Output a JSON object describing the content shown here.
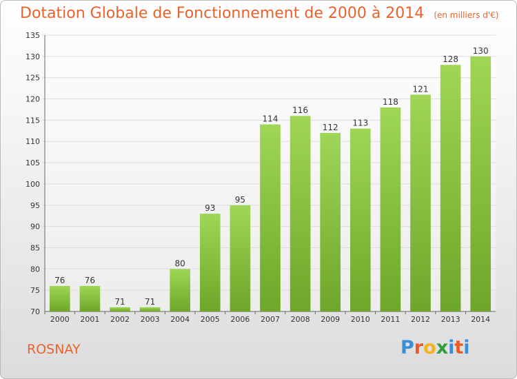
{
  "header": {
    "title": "Dotation Globale de Fonctionnement de 2000 à 2014",
    "subtitle": "(en milliers d'€)"
  },
  "footer": {
    "commune": "ROSNAY",
    "logo_letters": [
      {
        "ch": "P",
        "color": "#3a8ed8"
      },
      {
        "ch": "r",
        "color": "#e85a2a"
      },
      {
        "ch": "o",
        "color": "#f2b31d"
      },
      {
        "ch": "x",
        "color": "#2e9e3e"
      },
      {
        "ch": "i",
        "color": "#3a8ed8"
      },
      {
        "ch": "t",
        "color": "#e85a2a"
      },
      {
        "ch": "i",
        "color": "#3a8ed8"
      }
    ]
  },
  "colors": {
    "accent": "#e8632b",
    "bar_light": "#9fd655",
    "bar_dark": "#6ea629"
  },
  "chart_data": {
    "type": "bar",
    "title": "Dotation Globale de Fonctionnement de 2000 à 2014",
    "subtitle": "(en milliers d'€)",
    "categories": [
      "2000",
      "2001",
      "2002",
      "2003",
      "2004",
      "2005",
      "2006",
      "2007",
      "2008",
      "2009",
      "2010",
      "2011",
      "2012",
      "2013",
      "2014"
    ],
    "values": [
      76,
      76,
      71,
      71,
      80,
      93,
      95,
      114,
      116,
      112,
      113,
      118,
      121,
      128,
      130
    ],
    "xlabel": "",
    "ylabel": "",
    "ylim": [
      70,
      135
    ],
    "yticks": [
      70,
      75,
      80,
      85,
      90,
      95,
      100,
      105,
      110,
      115,
      120,
      125,
      130,
      135
    ],
    "grid": true,
    "legend": "none"
  }
}
